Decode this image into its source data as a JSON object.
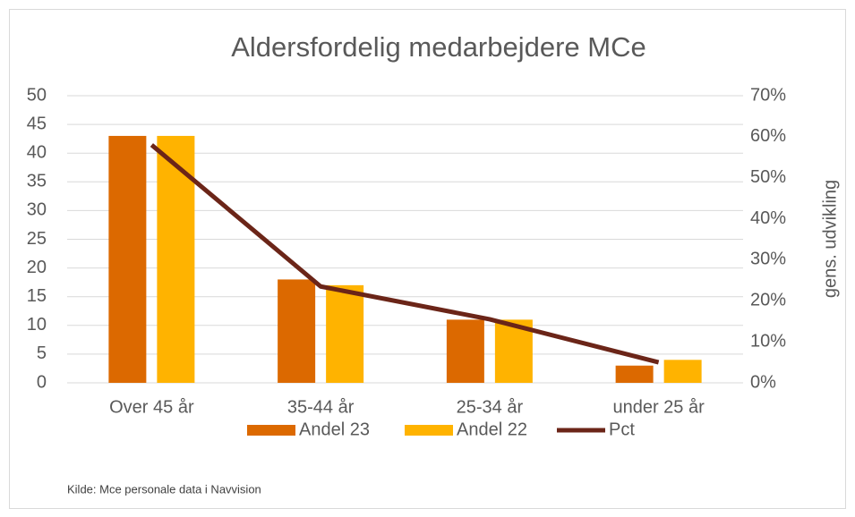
{
  "chart_data": {
    "type": "bar",
    "title": "Aldersfordelig medarbejdere MCe",
    "categories": [
      "Over 45 år",
      "35-44 år",
      "25-34 år",
      "under 25 år"
    ],
    "series": [
      {
        "name": "Andel 23",
        "color": "#dc6900",
        "values": [
          43,
          18,
          11,
          3
        ]
      },
      {
        "name": "Andel 22",
        "color": "#ffb300",
        "values": [
          43,
          17,
          11,
          4
        ]
      },
      {
        "name": "Pct",
        "color": "#6b2518",
        "type": "line",
        "axis": "y2",
        "values": [
          58,
          23.5,
          15.5,
          5
        ]
      }
    ],
    "ylim": [
      0,
      50
    ],
    "yticks": [
      0,
      5,
      10,
      15,
      20,
      25,
      30,
      35,
      40,
      45,
      50
    ],
    "y2lim": [
      0,
      70
    ],
    "y2ticks": [
      {
        "value": 0,
        "label": "0%"
      },
      {
        "value": 10,
        "label": "10%"
      },
      {
        "value": 20,
        "label": "20%"
      },
      {
        "value": 30,
        "label": "30%"
      },
      {
        "value": 40,
        "label": "40%"
      },
      {
        "value": 50,
        "label": "50%"
      },
      {
        "value": 60,
        "label": "60%"
      },
      {
        "value": 70,
        "label": "70%"
      }
    ],
    "y2_label": "gens. udvikling",
    "grid": true,
    "legend": "bottom",
    "source": "Kilde: Mce personale data i Navvision"
  }
}
